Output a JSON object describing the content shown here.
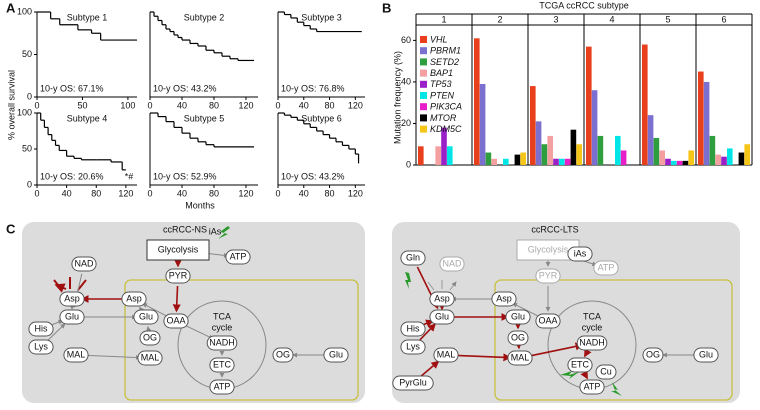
{
  "panel_labels": [
    "A",
    "B",
    "C"
  ],
  "panel_a": {
    "ylabel": "% overall survival",
    "xlabel": "Months"
  },
  "chart_data": [
    {
      "type": "step",
      "title": "Subtype 1",
      "annotation": "10-y OS: 67.1%",
      "x": [
        0,
        15,
        25,
        45,
        60,
        70,
        110
      ],
      "series": [
        {
          "color": "#000000",
          "values": [
            100,
            92,
            85,
            79,
            75,
            67,
            67
          ]
        }
      ],
      "xlim": [
        0,
        110
      ],
      "xticks": [
        0,
        50,
        100
      ],
      "ylim": [
        0,
        100
      ],
      "yticks": [
        0,
        50,
        100
      ]
    },
    {
      "type": "step",
      "title": "Subtype 2",
      "annotation": "10-y OS: 43.2%",
      "x": [
        0,
        5,
        10,
        15,
        20,
        25,
        30,
        35,
        40,
        50,
        60,
        70,
        80,
        90,
        100,
        110,
        130
      ],
      "series": [
        {
          "color": "#000000",
          "values": [
            100,
            95,
            90,
            85,
            80,
            77,
            73,
            70,
            67,
            63,
            60,
            55,
            52,
            48,
            45,
            43,
            43
          ]
        }
      ],
      "xlim": [
        0,
        135
      ],
      "xticks": [
        0,
        40,
        80,
        120
      ],
      "ylim": [
        0,
        100
      ]
    },
    {
      "type": "step",
      "title": "Subtype 3",
      "annotation": "10-y OS: 76.8%",
      "x": [
        0,
        10,
        20,
        30,
        40,
        50,
        60,
        130
      ],
      "series": [
        {
          "color": "#000000",
          "values": [
            100,
            97,
            93,
            88,
            84,
            80,
            77,
            77
          ]
        }
      ],
      "xlim": [
        0,
        135
      ],
      "xticks": [
        0,
        40,
        80,
        120
      ],
      "ylim": [
        0,
        100
      ]
    },
    {
      "type": "step",
      "title": "Subtype 4",
      "annotation": "10-y OS: 20.6%",
      "note": "*#",
      "x": [
        0,
        5,
        10,
        15,
        20,
        25,
        30,
        40,
        50,
        60,
        80,
        100,
        115,
        120
      ],
      "series": [
        {
          "color": "#000000",
          "values": [
            100,
            90,
            80,
            70,
            62,
            55,
            48,
            40,
            37,
            35,
            35,
            32,
            21,
            21
          ]
        }
      ],
      "xlim": [
        0,
        135
      ],
      "xticks": [
        0,
        40,
        80,
        120
      ],
      "ylim": [
        0,
        100
      ],
      "yticks": [
        0,
        50,
        100
      ]
    },
    {
      "type": "step",
      "title": "Subtype 5",
      "annotation": "10-y OS: 52.9%",
      "x": [
        0,
        10,
        20,
        30,
        40,
        50,
        60,
        70,
        80,
        130
      ],
      "series": [
        {
          "color": "#000000",
          "values": [
            100,
            95,
            88,
            80,
            72,
            65,
            60,
            56,
            53,
            53
          ]
        }
      ],
      "xlim": [
        0,
        135
      ],
      "xticks": [
        0,
        40,
        80,
        120
      ],
      "ylim": [
        0,
        100
      ]
    },
    {
      "type": "step",
      "title": "Subtype 6",
      "annotation": "10-y OS: 43.2%",
      "x": [
        0,
        10,
        20,
        30,
        40,
        50,
        60,
        70,
        80,
        90,
        100,
        110,
        120,
        125
      ],
      "series": [
        {
          "color": "#000000",
          "values": [
            100,
            97,
            94,
            90,
            85,
            80,
            75,
            70,
            65,
            60,
            55,
            50,
            43,
            30
          ]
        }
      ],
      "xlim": [
        0,
        135
      ],
      "xticks": [
        0,
        40,
        80,
        120
      ],
      "ylim": [
        0,
        100
      ]
    },
    {
      "type": "bar",
      "title": "TCGA ccRCC subtype",
      "ylabel": "Mutation frequency (%)",
      "categories": [
        "1",
        "2",
        "3",
        "4",
        "5",
        "6"
      ],
      "series": [
        {
          "name": "VHL",
          "color": "#e8401c",
          "values": [
            9,
            61,
            38,
            57,
            58,
            45
          ]
        },
        {
          "name": "PBRM1",
          "color": "#7b6fd0",
          "values": [
            0,
            39,
            21,
            36,
            24,
            40
          ]
        },
        {
          "name": "SETD2",
          "color": "#2e9e3e",
          "values": [
            0,
            6,
            10,
            14,
            13,
            14
          ]
        },
        {
          "name": "BAP1",
          "color": "#f4a0a0",
          "values": [
            9,
            3,
            14,
            0,
            7,
            5
          ]
        },
        {
          "name": "TP53",
          "color": "#9b1fc9",
          "values": [
            18,
            0,
            3,
            0,
            3,
            4
          ]
        },
        {
          "name": "PTEN",
          "color": "#00e5e5",
          "values": [
            9,
            3,
            3,
            14,
            2,
            8
          ]
        },
        {
          "name": "PIK3CA",
          "color": "#e81ec8",
          "values": [
            0,
            0,
            3,
            7,
            2,
            0
          ]
        },
        {
          "name": "MTOR",
          "color": "#000000",
          "values": [
            0,
            5,
            17,
            0,
            2,
            6
          ]
        },
        {
          "name": "KDM5C",
          "color": "#f5c518",
          "values": [
            0,
            6,
            10,
            0,
            7,
            10
          ]
        }
      ],
      "ylim": [
        0,
        65
      ],
      "yticks": [
        0,
        20,
        40,
        60
      ]
    }
  ],
  "diagram": {
    "panels": [
      {
        "title": "ccRCC-NS",
        "nodes": [
          "iAs",
          "Glycolysis",
          "PYR",
          "ATP",
          "NAD",
          "His",
          "Lys",
          "Asp",
          "Asp",
          "Glu",
          "Glu",
          "OAA",
          "TCA",
          "cycle",
          "NADH",
          "OG",
          "OG",
          "MAL",
          "MAL",
          "ETC",
          "ATP",
          "Glu"
        ]
      },
      {
        "title": "ccRCC-LTS",
        "nodes": [
          "Gln",
          "Glycolysis",
          "iAs",
          "NAD",
          "PYR",
          "ATP",
          "His",
          "Lys",
          "PyrGlu",
          "Asp",
          "Asp",
          "Glu",
          "Glu",
          "OAA",
          "TCA",
          "cycle",
          "NADH",
          "OG",
          "OG",
          "MAL",
          "MAL",
          "ETC",
          "Cu",
          "ATP",
          "Glu"
        ]
      }
    ]
  }
}
